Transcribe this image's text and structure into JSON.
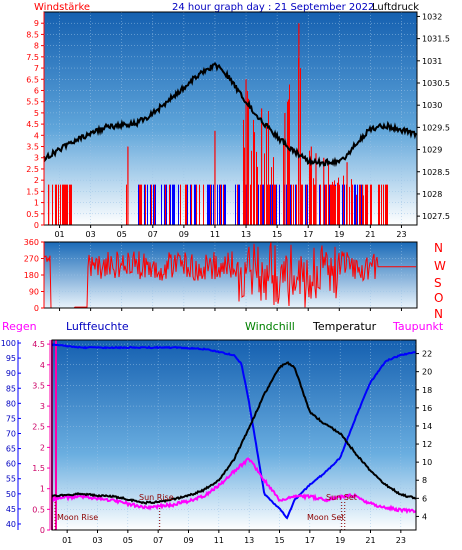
{
  "header": {
    "left": "Windstärke",
    "center": "24 hour graph day : 21 September 2022",
    "right": "Luftdruck"
  },
  "colors": {
    "red": "#ff0000",
    "blue": "#0000ff",
    "green": "#008000",
    "magenta": "#ff00ff",
    "black": "#000000",
    "plot_bg_top": "#1560b0",
    "plot_bg_bottom": "#ffffff"
  },
  "chart_data": [
    {
      "type": "line",
      "name": "wind-pressure",
      "x_ticks": [
        "01",
        "03",
        "05",
        "07",
        "09",
        "11",
        "13",
        "15",
        "17",
        "19",
        "21",
        "23"
      ],
      "y_left": {
        "label": "Windstärke",
        "ticks": [
          "0",
          "0.5",
          "1",
          "1.5",
          "2",
          "2.5",
          "3",
          "3.5",
          "4",
          "4.5",
          "5",
          "5.5",
          "6",
          "6.5",
          "7",
          "7.5",
          "8",
          "8.5",
          "9"
        ],
        "lim": [
          0,
          9.5
        ]
      },
      "y_right": {
        "label": "Luftdruck",
        "ticks": [
          "1027.5",
          "1028",
          "1028.5",
          "1029",
          "1029.5",
          "1030",
          "1030.5",
          "1031",
          "1031.5",
          "1032"
        ],
        "lim": [
          1027.3,
          1032.1
        ]
      },
      "pressure": {
        "hours": [
          0,
          1,
          2,
          3,
          4,
          5,
          6,
          7,
          8,
          9,
          10,
          10.5,
          11,
          11.5,
          12,
          13,
          14,
          15,
          16,
          17,
          18,
          19,
          19.5,
          20,
          21,
          22,
          23,
          24
        ],
        "values": [
          1028.8,
          1029.0,
          1029.2,
          1029.35,
          1029.5,
          1029.55,
          1029.6,
          1029.8,
          1030.1,
          1030.4,
          1030.7,
          1030.8,
          1030.9,
          1030.8,
          1030.6,
          1030.1,
          1029.65,
          1029.3,
          1029.0,
          1028.75,
          1028.7,
          1028.75,
          1028.85,
          1029.1,
          1029.45,
          1029.55,
          1029.45,
          1029.35
        ]
      },
      "wind_max": {
        "hours": [
          0.3,
          5.4,
          11,
          13,
          14,
          15.5,
          16.4,
          17.2,
          17.5,
          18,
          19.5,
          20.5,
          22
        ],
        "values": [
          1.8,
          3.5,
          4.2,
          6.5,
          5.2,
          5.0,
          9.0,
          3.5,
          3.2,
          3.0,
          2.8,
          1.8,
          0.8
        ]
      },
      "gust_band": {
        "lower": 0,
        "upper": 1.8
      }
    },
    {
      "type": "line",
      "name": "wind-direction",
      "x_ticks": [
        "01",
        "03",
        "05",
        "07",
        "09",
        "11",
        "13",
        "15",
        "17",
        "19",
        "21",
        "23"
      ],
      "y_ticks": [
        "0",
        "90",
        "180",
        "270",
        "360"
      ],
      "ylim": [
        0,
        360
      ],
      "compass": [
        "N",
        "W",
        "S",
        "O",
        "N"
      ],
      "values_summary": {
        "calm_start_hours": [
          0,
          2
        ],
        "steady_after_hour": 21.5,
        "steady_value": 225
      }
    },
    {
      "type": "line",
      "name": "humidity-temperature",
      "legend": [
        "Regen",
        "Luftfeuchte",
        "Windchill",
        "Temperatur",
        "Taupunkt"
      ],
      "x_ticks": [
        "01",
        "03",
        "05",
        "07",
        "09",
        "11",
        "13",
        "15",
        "17",
        "19",
        "21",
        "23"
      ],
      "y_rain": {
        "label": "Regen",
        "ticks": [
          "0",
          "0.5",
          "1",
          "1.5",
          "2",
          "2.5",
          "3",
          "3.5",
          "4",
          "4.5"
        ],
        "lim": [
          0,
          4.6
        ]
      },
      "y_humidity": {
        "label": "Luftfeuchte",
        "ticks": [
          "40",
          "45",
          "50",
          "55",
          "60",
          "65",
          "70",
          "75",
          "80",
          "85",
          "90",
          "95",
          "100"
        ],
        "lim": [
          38,
          101
        ]
      },
      "y_temp": {
        "label": "Temperatur",
        "ticks": [
          "4",
          "6",
          "8",
          "10",
          "12",
          "14",
          "16",
          "18",
          "20",
          "22"
        ],
        "lim": [
          2.5,
          23.5
        ]
      },
      "temperature": {
        "hours": [
          0,
          1,
          2,
          3,
          4,
          5,
          6,
          7,
          8,
          9,
          10,
          11,
          12,
          13,
          14,
          15,
          15.5,
          16,
          17,
          18,
          19,
          20,
          21,
          22,
          23,
          24
        ],
        "values": [
          6.2,
          6.4,
          6.5,
          6.3,
          6.2,
          5.9,
          5.5,
          5.6,
          5.9,
          6.3,
          6.9,
          8.0,
          10.3,
          13.8,
          17.5,
          20.5,
          21.0,
          20.5,
          15.5,
          14.2,
          13.2,
          11.0,
          9.0,
          7.5,
          6.4,
          6.0
        ]
      },
      "dewpoint": {
        "hours": [
          0,
          1,
          2,
          3,
          4,
          5,
          6,
          7,
          8,
          9,
          10,
          11,
          12,
          13,
          14,
          15,
          16,
          17,
          18,
          19,
          20,
          21,
          22,
          23,
          24
        ],
        "values": [
          5.9,
          6.1,
          6.2,
          6.0,
          5.8,
          5.4,
          5.0,
          5.1,
          5.3,
          5.7,
          6.2,
          7.4,
          9.0,
          10.4,
          8.0,
          5.8,
          6.2,
          6.2,
          5.8,
          6.2,
          6.3,
          5.4,
          5.0,
          4.7,
          4.6
        ]
      },
      "humidity": {
        "hours": [
          0,
          1,
          2,
          8,
          10,
          11,
          12,
          12.5,
          13,
          13.5,
          14,
          15,
          15.5,
          16,
          17,
          18,
          19,
          20,
          21,
          22,
          23,
          24
        ],
        "values": [
          99.5,
          99,
          98.5,
          98.5,
          98,
          97,
          96,
          93,
          80,
          65,
          50,
          45,
          42,
          48,
          53,
          57,
          62,
          75,
          87,
          94,
          96,
          97
        ]
      },
      "annotations": [
        "Sun Rise",
        "Sun Set",
        "Moon Rise",
        "Moon Set"
      ],
      "annotation_hours": [
        7.1,
        19.1,
        0.2,
        19.3
      ]
    }
  ]
}
